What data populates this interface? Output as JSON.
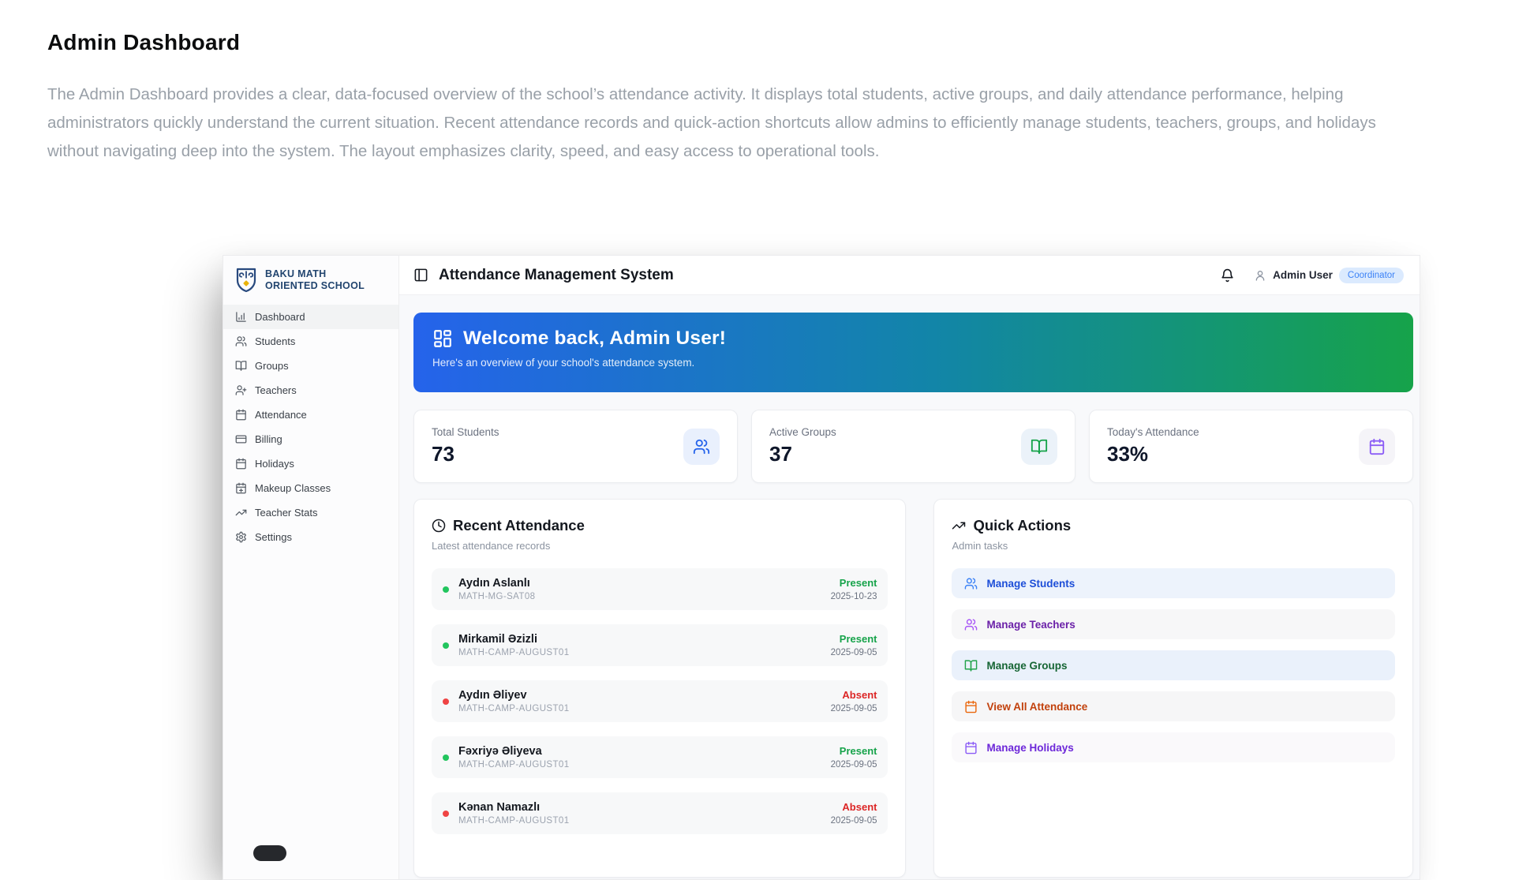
{
  "page": {
    "title": "Admin Dashboard",
    "description": "The Admin Dashboard provides a clear, data-focused overview of the school’s attendance activity. It displays total students, active groups, and daily attendance performance, helping administrators quickly understand the current situation. Recent attendance records and quick-action shortcuts allow admins to efficiently manage students, teachers, groups, and holidays without navigating deep into the system. The layout emphasizes clarity, speed, and easy access to operational tools."
  },
  "app": {
    "sidebar": {
      "school_name_line1": "BAKU MATH",
      "school_name_line2": "ORIENTED SCHOOL",
      "items": [
        {
          "label": "Dashboard",
          "icon": "chart-column",
          "active": true
        },
        {
          "label": "Students",
          "icon": "users",
          "active": false
        },
        {
          "label": "Groups",
          "icon": "book-open",
          "active": false
        },
        {
          "label": "Teachers",
          "icon": "user-plus",
          "active": false
        },
        {
          "label": "Attendance",
          "icon": "calendar",
          "active": false
        },
        {
          "label": "Billing",
          "icon": "credit-card",
          "active": false
        },
        {
          "label": "Holidays",
          "icon": "calendar",
          "active": false
        },
        {
          "label": "Makeup Classes",
          "icon": "calendar-plus",
          "active": false
        },
        {
          "label": "Teacher Stats",
          "icon": "trending-up",
          "active": false
        },
        {
          "label": "Settings",
          "icon": "gear",
          "active": false
        }
      ]
    },
    "header": {
      "title": "Attendance Management System",
      "user_name": "Admin User",
      "user_role": "Coordinator",
      "badge_bg": "#dbeafe",
      "badge_color": "#3c82f6"
    },
    "banner": {
      "title": "Welcome back, Admin User!",
      "subtitle": "Here's an overview of your school's attendance system.",
      "gradient_from": "#2563eb",
      "gradient_via": "#1285a8",
      "gradient_to": "#16a34a",
      "icon": "layout-dashboard"
    },
    "stats": [
      {
        "label": "Total Students",
        "value": "73",
        "icon": "users",
        "icon_color": "#2563eb",
        "icon_bg": "#e9f0fd"
      },
      {
        "label": "Active Groups",
        "value": "37",
        "icon": "book-open",
        "icon_color": "#16a34a",
        "icon_bg": "#ebf2f9"
      },
      {
        "label": "Today's Attendance",
        "value": "33%",
        "icon": "calendar",
        "icon_color": "#8b5cf6",
        "icon_bg": "#f5f4f8"
      }
    ],
    "recent": {
      "title": "Recent Attendance",
      "subtitle": "Latest attendance records",
      "icon": "clock",
      "records": [
        {
          "name": "Aydın Aslanlı",
          "group": "MATH-MG-SAT08",
          "status": "Present",
          "date": "2025-10-23"
        },
        {
          "name": "Mirkamil Əzizli",
          "group": "MATH-CAMP-AUGUST01",
          "status": "Present",
          "date": "2025-09-05"
        },
        {
          "name": "Aydın Əliyev",
          "group": "MATH-CAMP-AUGUST01",
          "status": "Absent",
          "date": "2025-09-05"
        },
        {
          "name": "Fəxriyə Əliyeva",
          "group": "MATH-CAMP-AUGUST01",
          "status": "Present",
          "date": "2025-09-05"
        },
        {
          "name": "Kənan Namazlı",
          "group": "MATH-CAMP-AUGUST01",
          "status": "Absent",
          "date": "2025-09-05"
        }
      ],
      "status_colors": {
        "Present": "#16a34a",
        "Absent": "#dc2626"
      },
      "dot_colors": {
        "Present": "#22c55e",
        "Absent": "#ef4444"
      }
    },
    "quick": {
      "title": "Quick Actions",
      "subtitle": "Admin tasks",
      "icon": "trending-up",
      "actions": [
        {
          "label": "Manage Students",
          "icon": "users",
          "text_color": "#1d4ed8",
          "icon_color": "#3b82f6",
          "bg": "#edf3fc"
        },
        {
          "label": "Manage Teachers",
          "icon": "users",
          "text_color": "#6b21a8",
          "icon_color": "#a855f7",
          "bg": "#f7f7f8"
        },
        {
          "label": "Manage Groups",
          "icon": "book-open",
          "text_color": "#166534",
          "icon_color": "#22a34a",
          "bg": "#eaf1fb"
        },
        {
          "label": "View All Attendance",
          "icon": "calendar",
          "text_color": "#c2410c",
          "icon_color": "#ea670c",
          "bg": "#f6f6f7"
        },
        {
          "label": "Manage Holidays",
          "icon": "calendar",
          "text_color": "#6d28d9",
          "icon_color": "#8b5cf6",
          "bg": "#faf9fb"
        }
      ]
    }
  }
}
